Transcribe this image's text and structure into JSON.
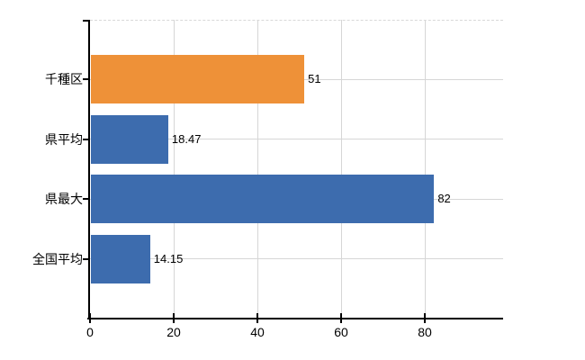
{
  "chart_data": {
    "type": "bar",
    "orientation": "horizontal",
    "categories": [
      "千種区",
      "県平均",
      "県最大",
      "全国平均"
    ],
    "values": [
      51,
      18.47,
      82,
      14.15
    ],
    "value_labels": [
      "51",
      "18.47",
      "82",
      "14.15"
    ],
    "bar_colors": [
      "#ee9138",
      "#3d6cae",
      "#3d6cae",
      "#3d6cae"
    ],
    "xticks": [
      0,
      20,
      40,
      60,
      80
    ],
    "xtick_labels": [
      "0",
      "20",
      "40",
      "60",
      "80"
    ],
    "xlim": [
      0,
      98.7
    ],
    "grid": true,
    "gridline_color": "#d6d6d6",
    "top_border_style": "dashed",
    "axis_color": "#000000",
    "text_color": "#000000",
    "background": "#ffffff",
    "legend": "none"
  }
}
